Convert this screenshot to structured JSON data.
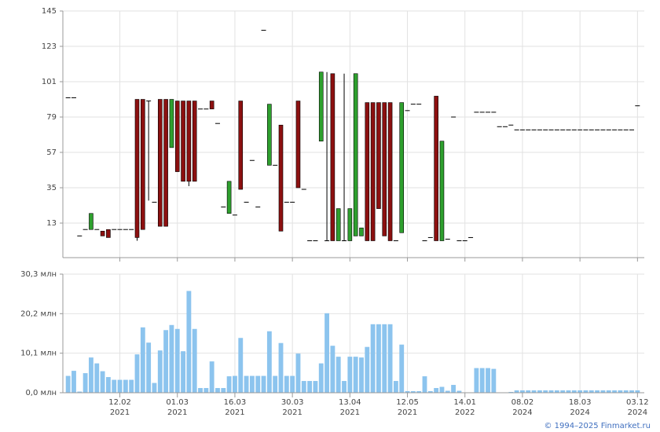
{
  "chart_data": [
    {
      "type": "candlestick",
      "up_color": "#2ea02e",
      "down_color": "#8c1010",
      "flat_color": "#000000",
      "open": [
        91,
        91,
        5,
        9,
        9,
        9,
        8,
        9,
        9,
        9,
        9,
        9,
        90,
        90,
        89,
        26,
        90,
        90,
        60,
        89,
        89,
        89,
        89,
        84,
        84,
        89,
        75,
        23,
        19,
        18,
        89,
        26,
        52,
        23,
        133,
        49,
        49,
        74,
        26,
        26,
        89,
        34,
        2,
        2,
        64,
        2,
        106,
        2,
        2,
        2,
        5,
        5,
        88,
        88,
        88,
        88,
        88,
        2,
        7,
        83,
        87,
        87,
        2,
        4,
        92,
        2,
        3,
        79,
        2,
        2,
        4,
        82,
        82,
        82,
        82,
        73,
        73,
        74,
        71,
        71,
        71,
        71,
        71,
        71,
        71,
        71,
        71,
        71,
        71,
        71,
        71,
        71,
        71,
        71,
        71,
        71,
        71,
        71,
        71,
        86
      ],
      "high": [
        91,
        91,
        5,
        9,
        19,
        9,
        8,
        9,
        9,
        9,
        9,
        9,
        90,
        90,
        89,
        26,
        90,
        90,
        90,
        89,
        89,
        89,
        89,
        84,
        84,
        89,
        75,
        23,
        39,
        18,
        89,
        26,
        52,
        23,
        133,
        87,
        49,
        74,
        26,
        26,
        89,
        34,
        2,
        2,
        107,
        107,
        106,
        22,
        106,
        22,
        106,
        10,
        88,
        88,
        88,
        88,
        88,
        2,
        88,
        83,
        87,
        87,
        2,
        4,
        92,
        64,
        3,
        79,
        2,
        2,
        4,
        82,
        82,
        82,
        82,
        73,
        73,
        74,
        71,
        71,
        71,
        71,
        71,
        71,
        71,
        71,
        71,
        71,
        71,
        71,
        71,
        71,
        71,
        71,
        71,
        71,
        71,
        71,
        71,
        86
      ],
      "low": [
        91,
        91,
        5,
        9,
        9,
        9,
        5,
        4,
        9,
        9,
        9,
        9,
        2,
        9,
        27,
        26,
        11,
        11,
        60,
        45,
        39,
        36,
        39,
        84,
        84,
        84,
        75,
        23,
        19,
        18,
        34,
        26,
        52,
        23,
        133,
        49,
        49,
        8,
        26,
        26,
        35,
        34,
        2,
        2,
        64,
        2,
        2,
        2,
        2,
        2,
        5,
        5,
        2,
        2,
        22,
        5,
        2,
        2,
        7,
        83,
        87,
        87,
        2,
        4,
        2,
        2,
        3,
        79,
        2,
        2,
        4,
        82,
        82,
        82,
        82,
        73,
        73,
        74,
        71,
        71,
        71,
        71,
        71,
        71,
        71,
        71,
        71,
        71,
        71,
        71,
        71,
        71,
        71,
        71,
        71,
        71,
        71,
        71,
        71,
        86
      ],
      "close": [
        91,
        91,
        5,
        9,
        19,
        9,
        5,
        4,
        9,
        9,
        9,
        9,
        4,
        9,
        89,
        26,
        11,
        11,
        90,
        45,
        39,
        39,
        39,
        84,
        84,
        84,
        75,
        23,
        39,
        18,
        34,
        26,
        52,
        23,
        133,
        87,
        49,
        8,
        26,
        26,
        35,
        34,
        2,
        2,
        107,
        2,
        2,
        22,
        2,
        22,
        106,
        10,
        2,
        2,
        22,
        5,
        2,
        2,
        88,
        83,
        87,
        87,
        2,
        4,
        2,
        64,
        3,
        79,
        2,
        2,
        4,
        82,
        82,
        82,
        82,
        73,
        73,
        74,
        71,
        71,
        71,
        71,
        71,
        71,
        71,
        71,
        71,
        71,
        71,
        71,
        71,
        71,
        71,
        71,
        71,
        71,
        71,
        71,
        71,
        86
      ],
      "ylim": [
        -8.5,
        145
      ],
      "yticks": [
        13,
        35,
        57,
        79,
        101,
        123,
        145
      ],
      "grid": true
    },
    {
      "type": "bar",
      "color": "#8cc4ee",
      "categories": [
        null,
        null,
        null,
        null,
        null,
        null,
        null,
        null,
        null,
        "12.02",
        null,
        null,
        null,
        null,
        null,
        null,
        null,
        null,
        null,
        "01.03",
        null,
        null,
        null,
        null,
        null,
        null,
        null,
        null,
        null,
        "16.03",
        null,
        null,
        null,
        null,
        null,
        null,
        null,
        null,
        null,
        "30.03",
        null,
        null,
        null,
        null,
        null,
        null,
        null,
        null,
        null,
        "13.04",
        null,
        null,
        null,
        null,
        null,
        null,
        null,
        null,
        null,
        "12.05",
        null,
        null,
        null,
        null,
        null,
        null,
        null,
        null,
        null,
        "14.01",
        null,
        null,
        null,
        null,
        null,
        null,
        null,
        null,
        null,
        "08.02",
        null,
        null,
        null,
        null,
        null,
        null,
        null,
        null,
        null,
        "18.03",
        null,
        null,
        null,
        null,
        null,
        null,
        null,
        null,
        null,
        "03.12"
      ],
      "category_years": [
        null,
        null,
        null,
        null,
        null,
        null,
        null,
        null,
        null,
        "2021",
        null,
        null,
        null,
        null,
        null,
        null,
        null,
        null,
        null,
        "2021",
        null,
        null,
        null,
        null,
        null,
        null,
        null,
        null,
        null,
        "2021",
        null,
        null,
        null,
        null,
        null,
        null,
        null,
        null,
        null,
        "2021",
        null,
        null,
        null,
        null,
        null,
        null,
        null,
        null,
        null,
        "2021",
        null,
        null,
        null,
        null,
        null,
        null,
        null,
        null,
        null,
        "2021",
        null,
        null,
        null,
        null,
        null,
        null,
        null,
        null,
        null,
        "2022",
        null,
        null,
        null,
        null,
        null,
        null,
        null,
        null,
        null,
        "2024",
        null,
        null,
        null,
        null,
        null,
        null,
        null,
        null,
        null,
        "2024",
        null,
        null,
        null,
        null,
        null,
        null,
        null,
        null,
        null,
        "2024"
      ],
      "values": [
        4.3,
        5.6,
        0.3,
        5,
        9,
        7.5,
        5.5,
        4,
        3.3,
        3.3,
        3.3,
        3.3,
        9.8,
        16.7,
        12.8,
        2.5,
        10.8,
        16,
        17.3,
        16.3,
        10.6,
        26,
        16.3,
        1.2,
        1.2,
        8,
        1.2,
        1.2,
        4.2,
        4.3,
        14,
        4.3,
        4.3,
        4.3,
        4.3,
        15.7,
        4.3,
        12.7,
        4.3,
        4.3,
        10,
        3,
        3,
        3,
        7.5,
        20.3,
        12,
        9.2,
        3,
        9.2,
        9.2,
        9,
        11.7,
        17.5,
        17.5,
        17.5,
        17.5,
        3,
        12.3,
        0.4,
        0.4,
        0.4,
        4.2,
        0.4,
        1.2,
        1.5,
        0.5,
        2,
        0.5,
        0.1,
        0.1,
        6.3,
        6.3,
        6.3,
        6.1,
        0.1,
        0.1,
        0.2,
        0.6,
        0.6,
        0.6,
        0.6,
        0.6,
        0.6,
        0.6,
        0.6,
        0.6,
        0.6,
        0.6,
        0.6,
        0.6,
        0.6,
        0.6,
        0.6,
        0.6,
        0.6,
        0.6,
        0.6,
        0.6,
        0.6
      ],
      "ylim": [
        0,
        30.3
      ],
      "yticks": [
        {
          "value": 0,
          "label": "0,0 млн"
        },
        {
          "value": 10.1,
          "label": "10,1 млн"
        },
        {
          "value": 20.2,
          "label": "20,2 млн"
        },
        {
          "value": 30.3,
          "label": "30,3 млн"
        }
      ],
      "grid": true
    }
  ],
  "footer": "© 1994–2025 Finmarket.ru"
}
